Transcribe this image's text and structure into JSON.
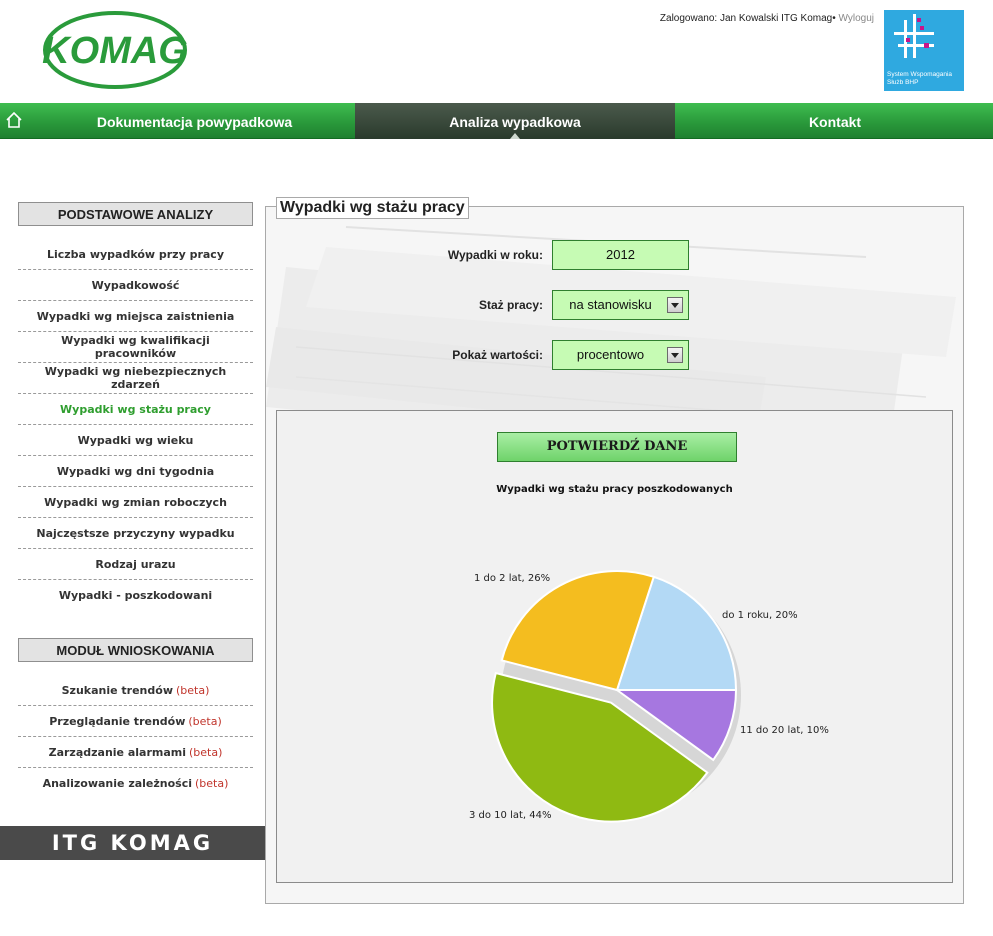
{
  "header": {
    "logo_text": "KOMAG",
    "logged_in_label": "Zalogowano: Jan Kowalski ITG Komag",
    "logout_label": "Wyloguj",
    "system_logo_line1": "System Wspomagania",
    "system_logo_line2": "Służb BHP"
  },
  "nav": {
    "items": [
      {
        "label": "Dokumentacja powypadkowa"
      },
      {
        "label": "Analiza wypadkowa"
      },
      {
        "label": "Kontakt"
      }
    ]
  },
  "sidebar": {
    "basic_title": "PODSTAWOWE ANALIZY",
    "basic_items": [
      {
        "label": "Liczba wypadków przy pracy"
      },
      {
        "label": "Wypadkowość"
      },
      {
        "label": "Wypadki wg miejsca zaistnienia"
      },
      {
        "label": "Wypadki wg kwalifikacji pracowników"
      },
      {
        "label": "Wypadki wg niebezpiecznych zdarzeń"
      },
      {
        "label": "Wypadki wg stażu pracy"
      },
      {
        "label": "Wypadki wg wieku"
      },
      {
        "label": "Wypadki wg dni tygodnia"
      },
      {
        "label": "Wypadki wg zmian roboczych"
      },
      {
        "label": "Najczęstsze przyczyny wypadku"
      },
      {
        "label": "Rodzaj urazu"
      },
      {
        "label": "Wypadki - poszkodowani"
      }
    ],
    "module_title": "MODUŁ WNIOSKOWANIA",
    "beta_label": "(beta)",
    "module_items": [
      {
        "label": "Szukanie trendów"
      },
      {
        "label": "Przeglądanie trendów"
      },
      {
        "label": "Zarządzanie alarmami"
      },
      {
        "label": "Analizowanie zależności"
      }
    ],
    "footer_banner": "ITG KOMAG"
  },
  "main": {
    "panel_title": "Wypadki wg stażu pracy",
    "year_label": "Wypadki w roku:",
    "year_value": "2012",
    "seniority_label": "Staż pracy:",
    "seniority_value": "na stanowisku",
    "show_values_label": "Pokaż wartości:",
    "show_values_value": "procentowo",
    "confirm_button": "POTWIERDŹ DANE"
  },
  "colors": {
    "nav_green": "#2a9a3b",
    "active_link": "#2f9e2f",
    "form_fill": "#c6fbb4",
    "beta_red": "#c0342b"
  },
  "chart_data": {
    "type": "pie",
    "title": "Wypadki wg stażu pracy poszkodowanych",
    "slices": [
      {
        "label": "do 1 roku, 20%",
        "value": 20,
        "color": "#b3d9f5",
        "exploded": false
      },
      {
        "label": "11 do 20 lat, 10%",
        "value": 10,
        "color": "#a677e0",
        "exploded": false
      },
      {
        "label": "3 do 10 lat, 44%",
        "value": 44,
        "color": "#8fba12",
        "exploded": true
      },
      {
        "label": "1 do 2 lat, 26%",
        "value": 26,
        "color": "#f4bd1f",
        "exploded": false
      }
    ]
  }
}
